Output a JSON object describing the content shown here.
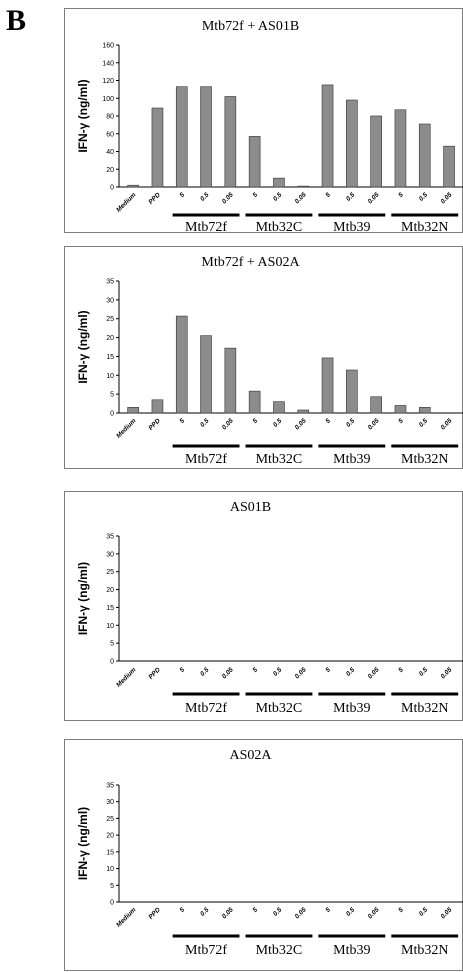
{
  "panel_label": "B",
  "styles": {
    "bar_fill": "#8c8c8c",
    "bar_stroke": "#333333",
    "group_line": "#000000",
    "frame": "#7d7d7d"
  },
  "chart_data": [
    {
      "type": "bar",
      "title": "Mtb72f + AS01B",
      "ylabel": "IFN-γ (ng/ml)",
      "ylim": [
        0,
        160
      ],
      "yticks": [
        0,
        20,
        40,
        60,
        80,
        100,
        120,
        140,
        160
      ],
      "categories": [
        "Medium",
        "PPD",
        "5",
        "0.5",
        "0.05",
        "5",
        "0.5",
        "0.05",
        "5",
        "0.5",
        "0.05",
        "5",
        "0.5",
        "0.05"
      ],
      "values": [
        2,
        89,
        113,
        113,
        102,
        57,
        10,
        1,
        115,
        98,
        80,
        87,
        71,
        46
      ],
      "groups": [
        {
          "label": "Mtb72f",
          "span": [
            2,
            4
          ]
        },
        {
          "label": "Mtb32C",
          "span": [
            5,
            7
          ]
        },
        {
          "label": "Mtb39",
          "span": [
            8,
            10
          ]
        },
        {
          "label": "Mtb32N",
          "span": [
            11,
            13
          ]
        }
      ],
      "grid": false
    },
    {
      "type": "bar",
      "title": "Mtb72f + AS02A",
      "ylabel": "IFN-γ (ng/ml)",
      "ylim": [
        0,
        35
      ],
      "yticks": [
        0,
        5,
        10,
        15,
        20,
        25,
        30,
        35
      ],
      "categories": [
        "Medium",
        "PPD",
        "5",
        "0.5",
        "0.05",
        "5",
        "0.5",
        "0.05",
        "5",
        "0.5",
        "0.05",
        "5",
        "0.5",
        "0.05"
      ],
      "values": [
        1.5,
        3.5,
        25.7,
        20.5,
        17.2,
        5.8,
        3,
        0.8,
        14.6,
        11.4,
        4.3,
        2,
        1.5,
        0
      ],
      "groups": [
        {
          "label": "Mtb72f",
          "span": [
            2,
            4
          ]
        },
        {
          "label": "Mtb32C",
          "span": [
            5,
            7
          ]
        },
        {
          "label": "Mtb39",
          "span": [
            8,
            10
          ]
        },
        {
          "label": "Mtb32N",
          "span": [
            11,
            13
          ]
        }
      ],
      "grid": false
    },
    {
      "type": "bar",
      "title": "AS01B",
      "ylabel": "IFN-γ (ng/ml)",
      "ylim": [
        0,
        35
      ],
      "yticks": [
        0,
        5,
        10,
        15,
        20,
        25,
        30,
        35
      ],
      "categories": [
        "Medium",
        "PPD",
        "5",
        "0.5",
        "0.05",
        "5",
        "0.5",
        "0.05",
        "5",
        "0.5",
        "0.05",
        "5",
        "0.5",
        "0.05"
      ],
      "values": [
        0,
        0,
        0,
        0,
        0,
        0,
        0,
        0,
        0,
        0,
        0,
        0,
        0,
        0
      ],
      "groups": [
        {
          "label": "Mtb72f",
          "span": [
            2,
            4
          ]
        },
        {
          "label": "Mtb32C",
          "span": [
            5,
            7
          ]
        },
        {
          "label": "Mtb39",
          "span": [
            8,
            10
          ]
        },
        {
          "label": "Mtb32N",
          "span": [
            11,
            13
          ]
        }
      ],
      "grid": false
    },
    {
      "type": "bar",
      "title": "AS02A",
      "ylabel": "IFN-γ (ng/ml)",
      "ylim": [
        0,
        35
      ],
      "yticks": [
        0,
        5,
        10,
        15,
        20,
        25,
        30,
        35
      ],
      "categories": [
        "Medium",
        "PPD",
        "5",
        "0.5",
        "0.05",
        "5",
        "0.5",
        "0.05",
        "5",
        "0.5",
        "0.05",
        "5",
        "0.5",
        "0.05"
      ],
      "values": [
        0,
        0,
        0,
        0,
        0,
        0,
        0,
        0,
        0,
        0,
        0,
        0,
        0,
        0
      ],
      "groups": [
        {
          "label": "Mtb72f",
          "span": [
            2,
            4
          ]
        },
        {
          "label": "Mtb32C",
          "span": [
            5,
            7
          ]
        },
        {
          "label": "Mtb39",
          "span": [
            8,
            10
          ]
        },
        {
          "label": "Mtb32N",
          "span": [
            11,
            13
          ]
        }
      ],
      "grid": false
    }
  ]
}
